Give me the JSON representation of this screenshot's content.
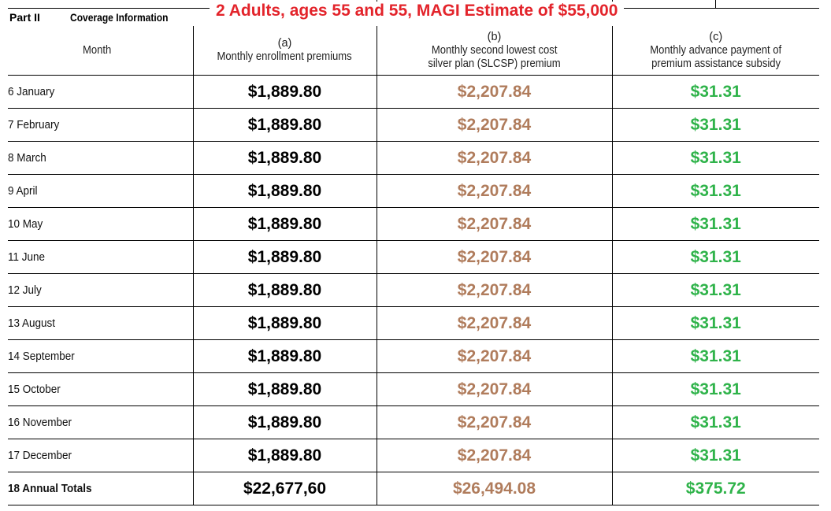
{
  "form": {
    "part_label": "Part II",
    "part_title": "Coverage Information",
    "headline": "2 Adults, ages 55 and 55, MAGI Estimate of $55,000"
  },
  "columns": {
    "month": {
      "label": "Month"
    },
    "a": {
      "letter": "(a)",
      "line1": "Monthly enrollment premiums",
      "line2": ""
    },
    "b": {
      "letter": "(b)",
      "line1": "Monthly second lowest cost",
      "line2": "silver plan (SLCSP) premium"
    },
    "c": {
      "letter": "(c)",
      "line1": "Monthly advance payment of",
      "line2": "premium assistance subsidy"
    }
  },
  "rows": [
    {
      "line": "6 January",
      "a": "$1,889.80",
      "b": "$2,207.84",
      "c": "$31.31"
    },
    {
      "line": "7 February",
      "a": "$1,889.80",
      "b": "$2,207.84",
      "c": "$31.31"
    },
    {
      "line": "8 March",
      "a": "$1,889.80",
      "b": "$2,207.84",
      "c": "$31.31"
    },
    {
      "line": "9 April",
      "a": "$1,889.80",
      "b": "$2,207.84",
      "c": "$31.31"
    },
    {
      "line": "10 May",
      "a": "$1,889.80",
      "b": "$2,207.84",
      "c": "$31.31"
    },
    {
      "line": "11 June",
      "a": "$1,889.80",
      "b": "$2,207.84",
      "c": "$31.31"
    },
    {
      "line": "12 July",
      "a": "$1,889.80",
      "b": "$2,207.84",
      "c": "$31.31"
    },
    {
      "line": "13 August",
      "a": "$1,889.80",
      "b": "$2,207.84",
      "c": "$31.31"
    },
    {
      "line": "14 September",
      "a": "$1,889.80",
      "b": "$2,207.84",
      "c": "$31.31"
    },
    {
      "line": "15 October",
      "a": "$1,889.80",
      "b": "$2,207.84",
      "c": "$31.31"
    },
    {
      "line": "16 November",
      "a": "$1,889.80",
      "b": "$2,207.84",
      "c": "$31.31"
    },
    {
      "line": "17 December",
      "a": "$1,889.80",
      "b": "$2,207.84",
      "c": "$31.31"
    }
  ],
  "totals": {
    "line": "18 Annual Totals",
    "a": "$22,677,60",
    "b": "$26,494.08",
    "c": "$375.72"
  },
  "colors": {
    "headline": "#e3242b",
    "col_a": "#000000",
    "col_b": "#b07c5c",
    "col_c": "#2fb34a"
  }
}
